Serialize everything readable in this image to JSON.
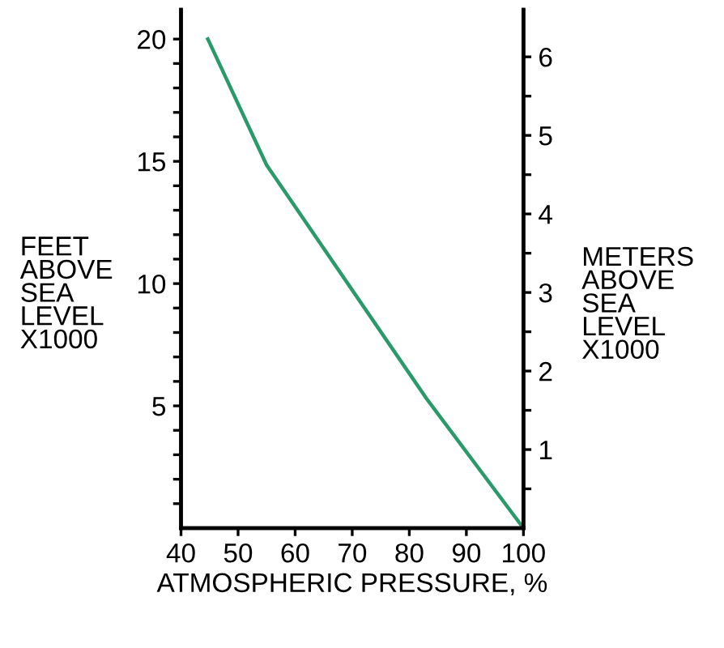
{
  "chart_data": {
    "type": "line",
    "xlabel": "ATMOSPHERIC PRESSURE, %",
    "ylabel": "FEET\nABOVE\nSEA\nLEVEL\nX1000",
    "y2label": "METERS\nABOVE\nSEA\nLEVEL\nX1000",
    "x": [
      44.7,
      55.0,
      83.1,
      100
    ],
    "series": [
      {
        "color": "#2a9a6a",
        "values": [
          20,
          14.85,
          5.27,
          0
        ]
      }
    ],
    "xlim": [
      40,
      100
    ],
    "xticks": [
      40,
      50,
      60,
      70,
      80,
      90,
      100
    ],
    "ylim": [
      0,
      21.2
    ],
    "yticks": [
      {
        "value": 1,
        "label": null
      },
      {
        "value": 2,
        "label": null
      },
      {
        "value": 3,
        "label": null
      },
      {
        "value": 4,
        "label": null
      },
      5,
      {
        "value": 6,
        "label": null
      },
      {
        "value": 7,
        "label": null
      },
      {
        "value": 8,
        "label": null
      },
      {
        "value": 9,
        "label": null
      },
      10,
      {
        "value": 11,
        "label": null
      },
      {
        "value": 12,
        "label": null
      },
      {
        "value": 13,
        "label": null
      },
      {
        "value": 14,
        "label": null
      },
      15,
      {
        "value": 16,
        "label": null
      },
      {
        "value": 17,
        "label": null
      },
      {
        "value": 18,
        "label": null
      },
      {
        "value": 19,
        "label": null
      },
      20
    ],
    "y2lim": [
      0,
      6.6
    ],
    "y2ticks": [
      {
        "value": 0.5,
        "label": null
      },
      1,
      {
        "value": 1.5,
        "label": null
      },
      2,
      {
        "value": 2.5,
        "label": null
      },
      3,
      {
        "value": 3.5,
        "label": null
      },
      4,
      {
        "value": 4.5,
        "label": null
      },
      5,
      {
        "value": 5.5,
        "label": null
      },
      6
    ],
    "grid": false,
    "legend": false,
    "marker": "none",
    "line_style": "solid"
  }
}
